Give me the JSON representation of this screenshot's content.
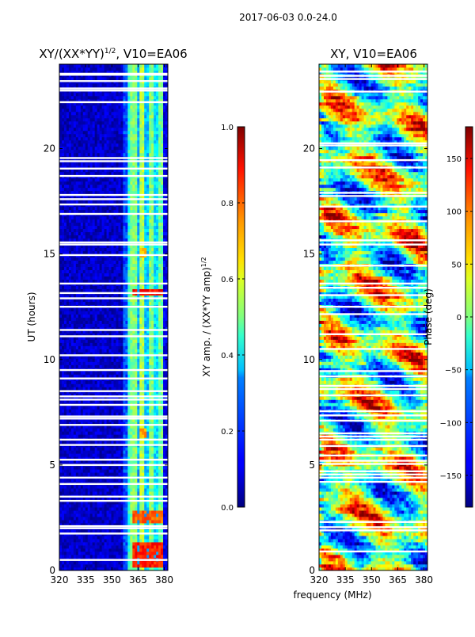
{
  "figure": {
    "suptitle": "2017-06-03 0.0-24.0",
    "xlabel": "frequency (MHz)"
  },
  "chart_data": [
    {
      "type": "heatmap",
      "title_main": "XY/(XX*YY)",
      "title_sup": "1/2",
      "title_tail": ", V10=EA06",
      "xlabel": "",
      "ylabel": "UT (hours)",
      "xlim": [
        320,
        382
      ],
      "ylim": [
        0,
        24
      ],
      "xticks": [
        320,
        335,
        350,
        365,
        380
      ],
      "yticks": [
        0,
        5,
        10,
        15,
        20
      ],
      "colorbar": {
        "label_main": "XY amp. / (XX*YY amp)",
        "label_sup": "1/2",
        "range": [
          0.0,
          1.0
        ],
        "ticks": [
          "0.0",
          "0.2",
          "0.4",
          "0.6",
          "0.8",
          "1.0"
        ],
        "tick_values": [
          0.0,
          0.2,
          0.4,
          0.6,
          0.8,
          1.0
        ],
        "colormap": "jet"
      },
      "colormap_stops": [
        "#00007f",
        "#0000ff",
        "#007fff",
        "#00ffff",
        "#7fff7f",
        "#ffff00",
        "#ff7f00",
        "#ff0000",
        "#7f0000"
      ],
      "gap_hours": [
        0.5,
        1.75,
        2.0,
        2.1,
        3.3,
        3.5,
        4.1,
        4.4,
        5.0,
        5.25,
        5.95,
        6.2,
        6.9,
        7.2,
        7.3,
        7.85,
        8.1,
        8.25,
        8.5,
        9.1,
        9.5,
        10.2,
        11.1,
        11.4,
        12.5,
        12.9,
        13.15,
        13.6,
        14.95,
        15.45,
        15.55,
        16.9,
        17.35,
        17.6,
        17.8,
        18.7,
        19.05,
        19.4,
        19.55,
        22.2,
        22.75,
        22.85,
        23.2,
        23.5,
        23.55
      ],
      "column_bands": [
        {
          "range_mhz": [
            320,
            357
          ],
          "level": 0.07
        },
        {
          "range_mhz": [
            357,
            359
          ],
          "level": 0.2
        },
        {
          "range_mhz": [
            359,
            361
          ],
          "level": 0.42
        },
        {
          "range_mhz": [
            361,
            364
          ],
          "level": 0.5
        },
        {
          "range_mhz": [
            364,
            366
          ],
          "level": 0.3
        },
        {
          "range_mhz": [
            366,
            369
          ],
          "level": 0.55
        },
        {
          "range_mhz": [
            369,
            371
          ],
          "level": 0.32
        },
        {
          "range_mhz": [
            371,
            374
          ],
          "level": 0.5
        },
        {
          "range_mhz": [
            374,
            376
          ],
          "level": 0.35
        },
        {
          "range_mhz": [
            376,
            379
          ],
          "level": 0.48
        },
        {
          "range_mhz": [
            379,
            382
          ],
          "level": 0.1
        }
      ],
      "hot_spots": [
        {
          "t_range": [
            0.2,
            1.3
          ],
          "f_range": [
            362,
            380
          ],
          "level": 0.85
        },
        {
          "t_range": [
            2.3,
            2.9
          ],
          "f_range": [
            362,
            380
          ],
          "level": 0.78
        },
        {
          "t_range": [
            13.0,
            13.4
          ],
          "f_range": [
            362,
            380
          ],
          "level": 0.87
        },
        {
          "t_range": [
            6.3,
            6.7
          ],
          "f_range": [
            366,
            370
          ],
          "level": 0.72
        },
        {
          "t_range": [
            14.8,
            15.3
          ],
          "f_range": [
            366,
            370
          ],
          "level": 0.7
        }
      ]
    },
    {
      "type": "heatmap",
      "title_main": "XY, V10=EA06",
      "xlabel": "",
      "ylabel": "",
      "xlim": [
        320,
        382
      ],
      "ylim": [
        0,
        24
      ],
      "xticks": [
        320,
        335,
        350,
        365,
        380
      ],
      "yticks": [
        0,
        5,
        10,
        15,
        20
      ],
      "colorbar": {
        "label_main": "Phase (deg)",
        "range": [
          -180,
          180
        ],
        "ticks": [
          "150",
          "100",
          "50",
          "0",
          "−50",
          "−100",
          "−150"
        ],
        "tick_values": [
          150,
          100,
          50,
          0,
          -50,
          -100,
          -150
        ],
        "colormap": "jet"
      },
      "colormap_stops": [
        "#00007f",
        "#0000ff",
        "#007fff",
        "#00ffff",
        "#7fff7f",
        "#ffff00",
        "#ff7f00",
        "#ff0000",
        "#7f0000"
      ],
      "gap_hours": [
        0.9,
        1.9,
        2.05,
        2.3,
        4.2,
        4.4,
        4.55,
        4.7,
        5.05,
        5.2,
        5.45,
        5.9,
        6.2,
        6.35,
        6.5,
        7.1,
        7.35,
        7.55,
        8.3,
        8.6,
        8.75,
        9.2,
        9.45,
        10.5,
        11.2,
        12.15,
        12.5,
        13.05,
        13.4,
        13.6,
        14.45,
        15.45,
        15.65,
        16.55,
        17.25,
        17.75,
        17.9,
        19.1,
        19.45,
        20.15,
        20.25,
        22.7,
        23.3,
        23.45,
        23.65
      ]
    }
  ]
}
